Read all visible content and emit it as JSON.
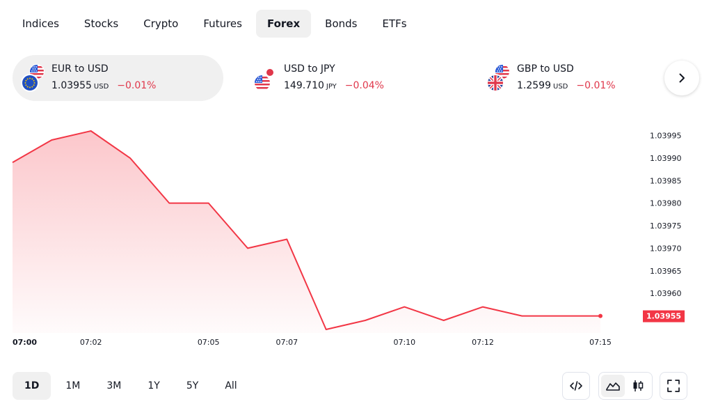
{
  "tabs": [
    {
      "label": "Indices",
      "active": false
    },
    {
      "label": "Stocks",
      "active": false
    },
    {
      "label": "Crypto",
      "active": false
    },
    {
      "label": "Futures",
      "active": false
    },
    {
      "label": "Forex",
      "active": true
    },
    {
      "label": "Bonds",
      "active": false
    },
    {
      "label": "ETFs",
      "active": false
    }
  ],
  "pairs": [
    {
      "name": "EUR to USD",
      "price": "1.03955",
      "currency": "USD",
      "change": "−0.01%",
      "flags": [
        "us-flag",
        "eu-flag"
      ],
      "active": true
    },
    {
      "name": "USD to JPY",
      "price": "149.710",
      "currency": "JPY",
      "change": "−0.04%",
      "flags": [
        "jp-flag",
        "us-flag"
      ],
      "active": false
    },
    {
      "name": "GBP to USD",
      "price": "1.2599",
      "currency": "USD",
      "change": "−0.01%",
      "flags": [
        "us-flag",
        "gb-flag"
      ],
      "active": false
    }
  ],
  "colors": {
    "accent_red": "#e0374b",
    "line": "#f23645",
    "active_bg": "#f0f0f0"
  },
  "chart_data": {
    "type": "area",
    "x": [
      "07:00",
      "07:01",
      "07:02",
      "07:03",
      "07:04",
      "07:05",
      "07:06",
      "07:07",
      "07:08",
      "07:09",
      "07:10",
      "07:11",
      "07:12",
      "07:13",
      "07:14",
      "07:15"
    ],
    "values": [
      1.03989,
      1.03994,
      1.03996,
      1.0399,
      1.0398,
      1.0398,
      1.0397,
      1.03972,
      1.03952,
      1.03954,
      1.03957,
      1.03954,
      1.03957,
      1.03955,
      1.03955,
      1.03955
    ],
    "x_tick_labels": [
      "07:00",
      "07:02",
      "07:05",
      "07:07",
      "07:10",
      "07:12",
      "07:15"
    ],
    "y_tick_labels": [
      "1.03995",
      "1.03990",
      "1.03985",
      "1.03980",
      "1.03975",
      "1.03970",
      "1.03965",
      "1.03960"
    ],
    "y_ticks": [
      1.03995,
      1.0399,
      1.03985,
      1.0398,
      1.03975,
      1.0397,
      1.03965,
      1.0396
    ],
    "ylim": [
      1.03952,
      1.03996
    ],
    "last_value_label": "1.03955",
    "last_value": 1.03955,
    "grid": false
  },
  "ranges": [
    {
      "label": "1D",
      "active": true
    },
    {
      "label": "1M",
      "active": false
    },
    {
      "label": "3M",
      "active": false
    },
    {
      "label": "1Y",
      "active": false
    },
    {
      "label": "5Y",
      "active": false
    },
    {
      "label": "All",
      "active": false
    }
  ],
  "tools": {
    "embed_icon": "code-icon",
    "area_chart_icon": "area-chart-icon",
    "candle_chart_icon": "candlestick-icon",
    "fullscreen_icon": "fullscreen-icon",
    "next_icon": "chevron-right-icon"
  }
}
